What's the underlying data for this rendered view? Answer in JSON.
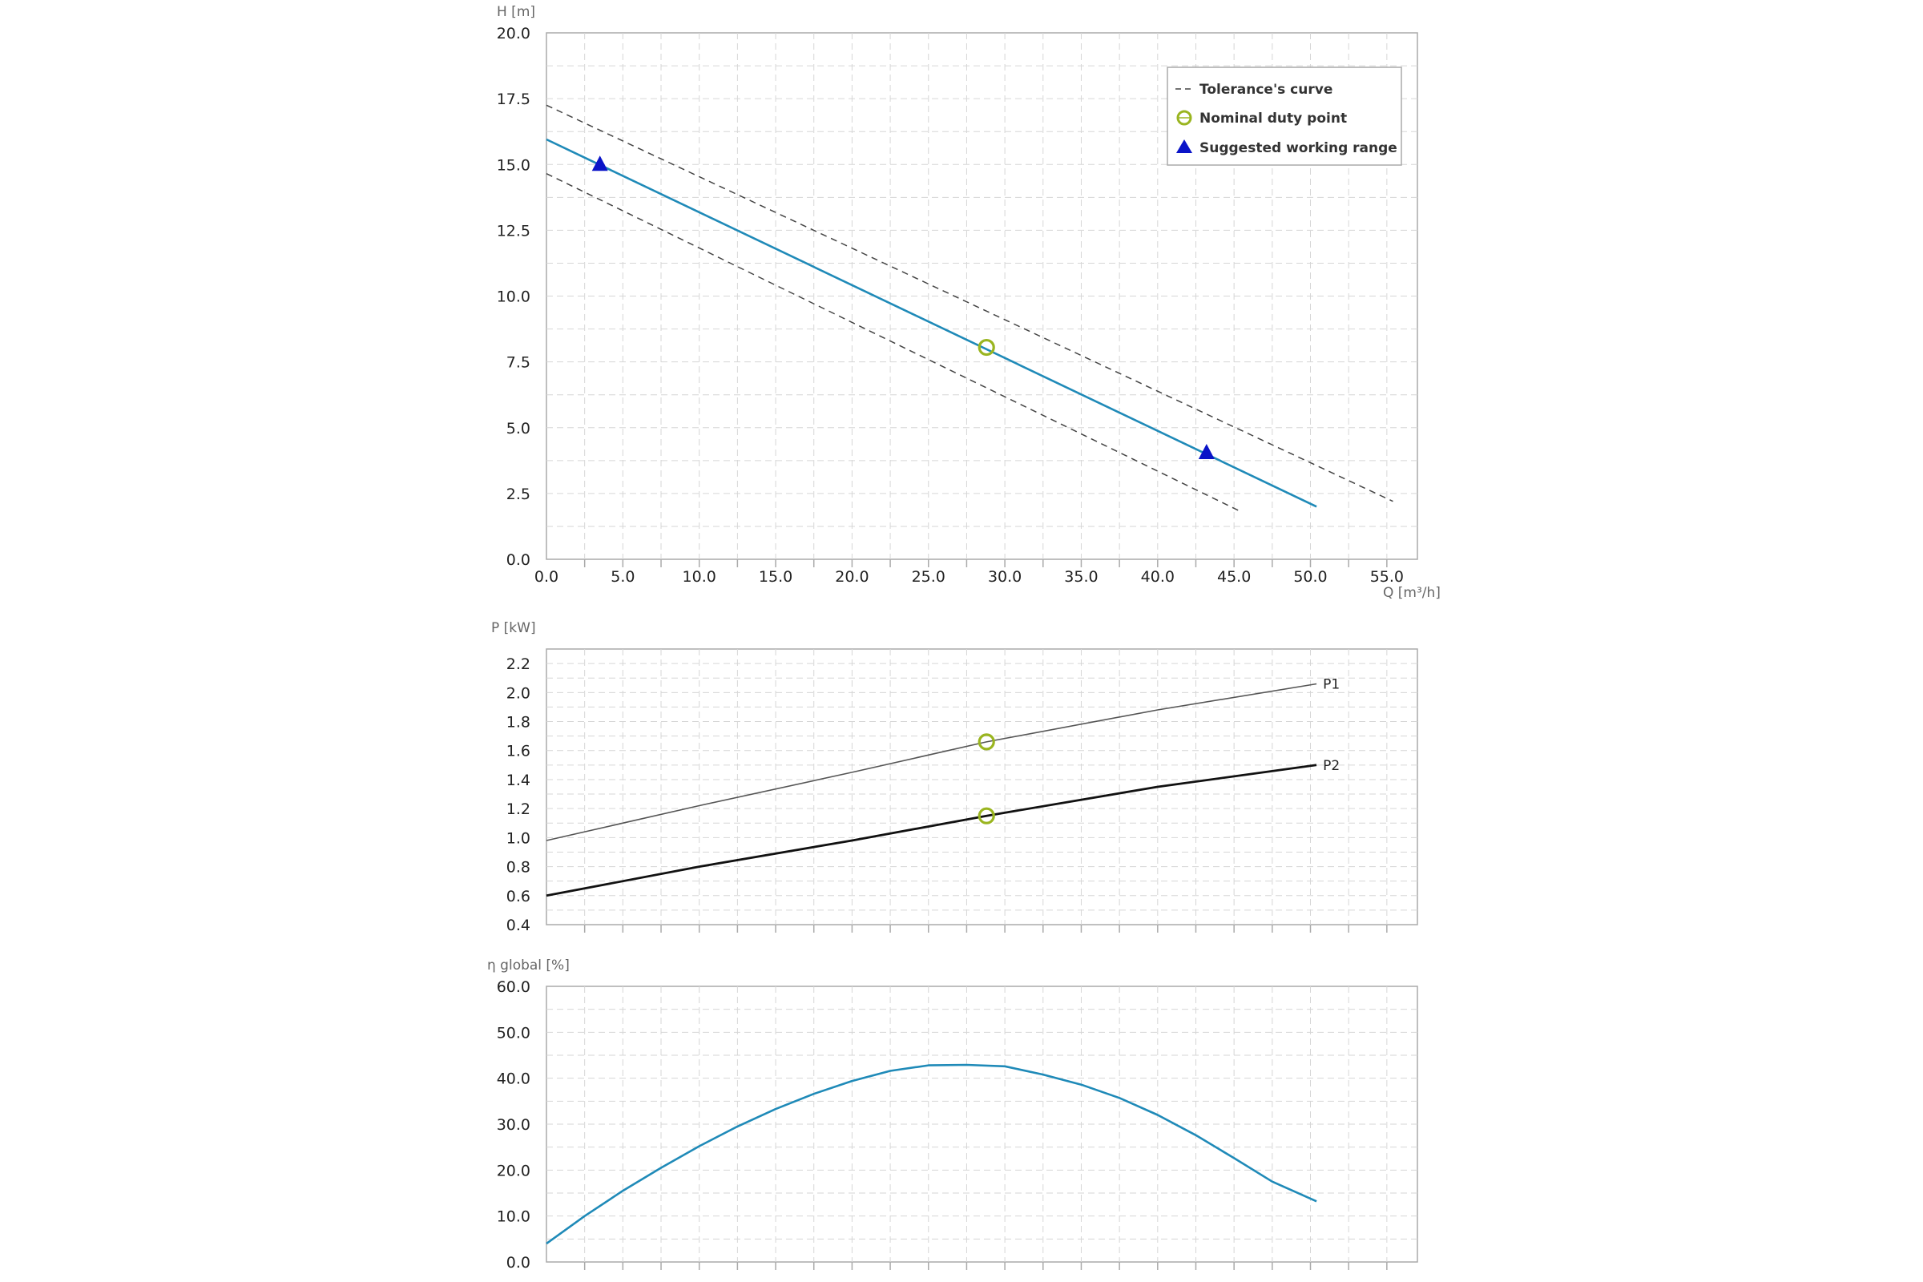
{
  "colors": {
    "main_curve": "#1f8ab8",
    "tolerance": "#444444",
    "duty_point": "#9ab520",
    "working_range": "#0a14c8",
    "p1": "#555555",
    "p2": "#111111",
    "grid": "#d6d6d6",
    "frame": "#aaaaaa"
  },
  "chart_data": [
    {
      "type": "line",
      "id": "head",
      "xlabel": "Q [m³/h]",
      "ylabel": "H [m]",
      "xlim": [
        0,
        57
      ],
      "ylim": [
        0,
        20
      ],
      "xticks": [
        "0.0",
        "5.0",
        "10.0",
        "15.0",
        "20.0",
        "25.0",
        "30.0",
        "35.0",
        "40.0",
        "45.0",
        "50.0",
        "55.0"
      ],
      "yticks": [
        "0.0",
        "2.5",
        "5.0",
        "7.5",
        "10.0",
        "12.5",
        "15.0",
        "17.5",
        "20.0"
      ],
      "grid": true,
      "legend_position": "top-right",
      "legend": [
        {
          "symbol": "dash",
          "label": "Tolerance's curve"
        },
        {
          "symbol": "circle",
          "label": "Nominal duty point"
        },
        {
          "symbol": "triangle",
          "label": "Suggested working range"
        }
      ],
      "series": [
        {
          "style": "main",
          "x": [
            0,
            50.4
          ],
          "y": [
            15.95,
            2.0
          ]
        },
        {
          "style": "tolerance",
          "x": [
            0,
            55.4
          ],
          "y": [
            17.25,
            2.2
          ]
        },
        {
          "style": "tolerance",
          "x": [
            0,
            45.3
          ],
          "y": [
            14.65,
            1.85
          ]
        }
      ],
      "duty_points": [
        {
          "x": 28.8,
          "y": 8.05
        }
      ],
      "working_range_points": [
        {
          "x": 3.5,
          "y": 15.0
        },
        {
          "x": 43.2,
          "y": 4.05
        }
      ]
    },
    {
      "type": "line",
      "id": "power",
      "xlabel": "",
      "ylabel": "P [kW]",
      "xlim": [
        0,
        57
      ],
      "ylim": [
        0.4,
        2.3
      ],
      "yticks": [
        "0.4",
        "0.6",
        "0.8",
        "1.0",
        "1.2",
        "1.4",
        "1.6",
        "1.8",
        "2.0",
        "2.2"
      ],
      "grid": true,
      "series": [
        {
          "name": "P1",
          "style": "p1",
          "x": [
            0,
            10,
            20,
            28.8,
            40,
            50.4
          ],
          "y": [
            0.98,
            1.22,
            1.45,
            1.66,
            1.88,
            2.06
          ]
        },
        {
          "name": "P2",
          "style": "p2",
          "x": [
            0,
            10,
            20,
            28.8,
            40,
            50.4
          ],
          "y": [
            0.6,
            0.8,
            0.98,
            1.15,
            1.35,
            1.5
          ]
        }
      ],
      "duty_points": [
        {
          "x": 28.8,
          "y": 1.66
        },
        {
          "x": 28.8,
          "y": 1.15
        }
      ]
    },
    {
      "type": "line",
      "id": "efficiency",
      "xlabel": "",
      "ylabel": "η global [%]",
      "xlim": [
        0,
        57
      ],
      "ylim": [
        0,
        60
      ],
      "yticks": [
        "0.0",
        "10.0",
        "20.0",
        "30.0",
        "40.0",
        "50.0",
        "60.0"
      ],
      "grid": true,
      "series": [
        {
          "style": "main",
          "x": [
            0,
            2.5,
            5,
            7.5,
            10,
            12.5,
            15,
            17.5,
            20,
            22.5,
            25,
            27.5,
            30,
            32.5,
            35,
            37.5,
            40,
            42.5,
            45,
            47.5,
            50.4
          ],
          "y": [
            4.0,
            10.0,
            15.5,
            20.5,
            25.2,
            29.5,
            33.3,
            36.6,
            39.4,
            41.6,
            42.8,
            42.9,
            42.6,
            40.8,
            38.6,
            35.7,
            32.0,
            27.6,
            22.6,
            17.5,
            13.2
          ]
        }
      ]
    }
  ]
}
